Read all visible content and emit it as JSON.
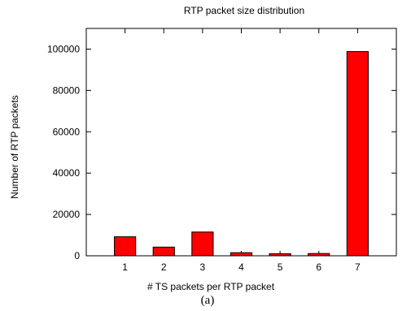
{
  "chart_data": {
    "type": "bar",
    "title": "RTP packet size distribution",
    "xlabel": "# TS packets per RTP packet",
    "ylabel": "Number of RTP packets",
    "caption": "(a)",
    "categories": [
      "1",
      "2",
      "3",
      "4",
      "5",
      "6",
      "7"
    ],
    "values": [
      9200,
      4200,
      11500,
      1500,
      1000,
      1100,
      98800
    ],
    "ylim": [
      0,
      110000
    ],
    "yticks": [
      0,
      20000,
      40000,
      60000,
      80000,
      100000
    ],
    "ytick_labels": [
      "0",
      "20000",
      "40000",
      "60000",
      "80000",
      "100000"
    ],
    "bar_color": "#ff0000",
    "bar_edge_color": "#000000",
    "grid": false,
    "legend": "none"
  }
}
